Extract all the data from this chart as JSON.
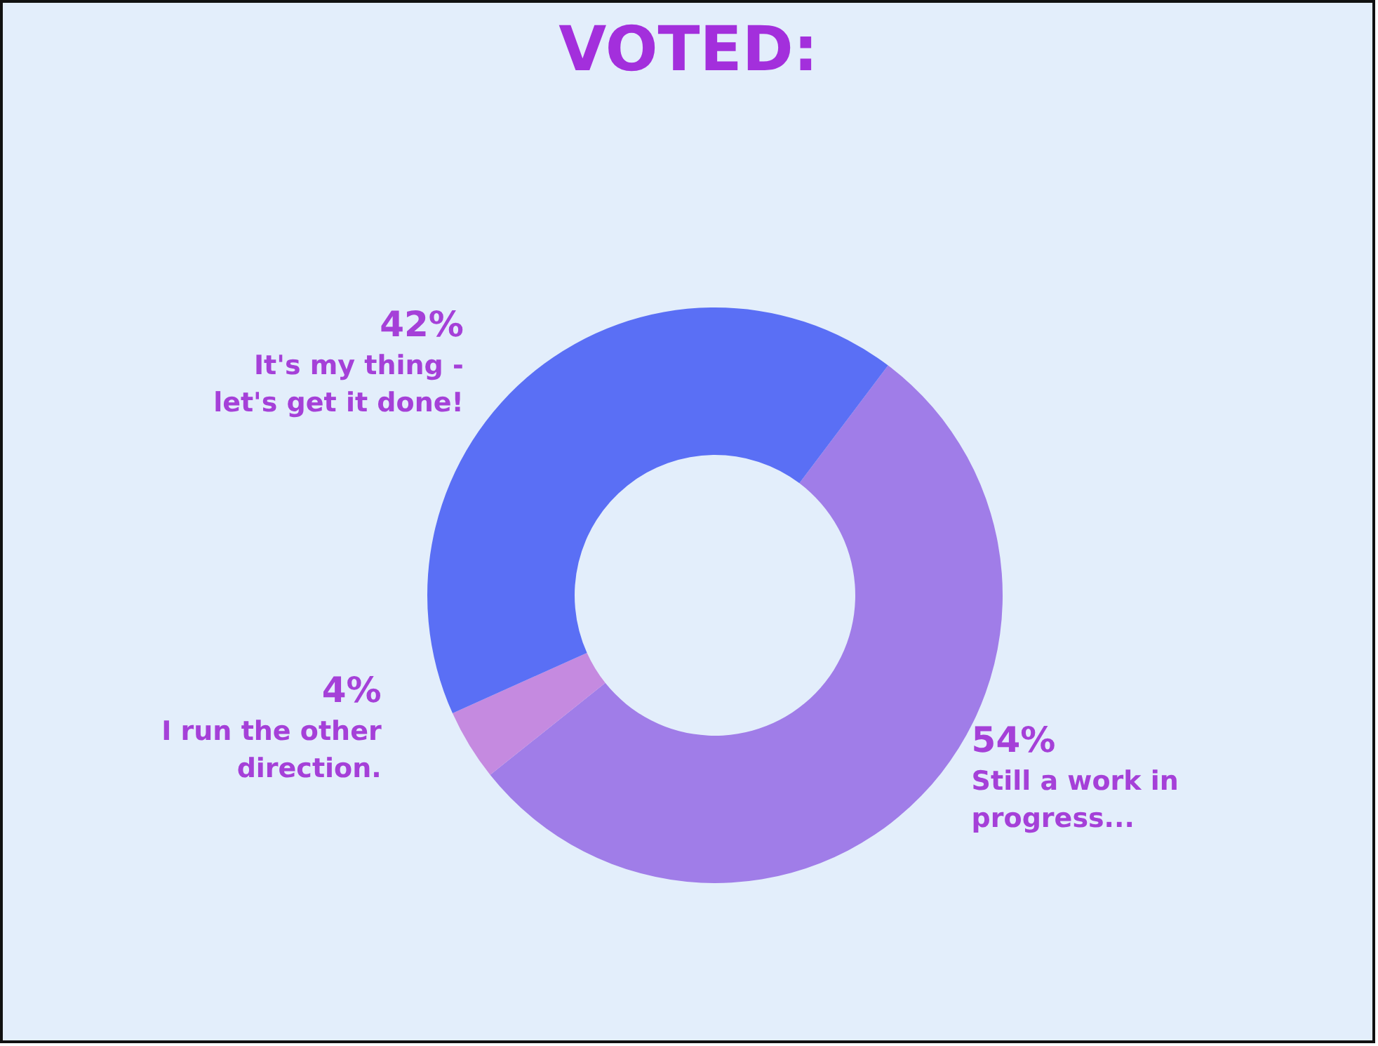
{
  "chart_data": {
    "type": "donut",
    "title": "VOTED:",
    "categories": [
      "Still a work in\nprogress...",
      "I run the other\ndirection.",
      "It's my thing -\nlet's get it done!"
    ],
    "values": [
      54,
      4,
      42
    ],
    "colors": [
      "#a07de8",
      "#c58ae0",
      "#5a6ff5"
    ],
    "value_labels": [
      "54%",
      "4%",
      "42%"
    ]
  }
}
